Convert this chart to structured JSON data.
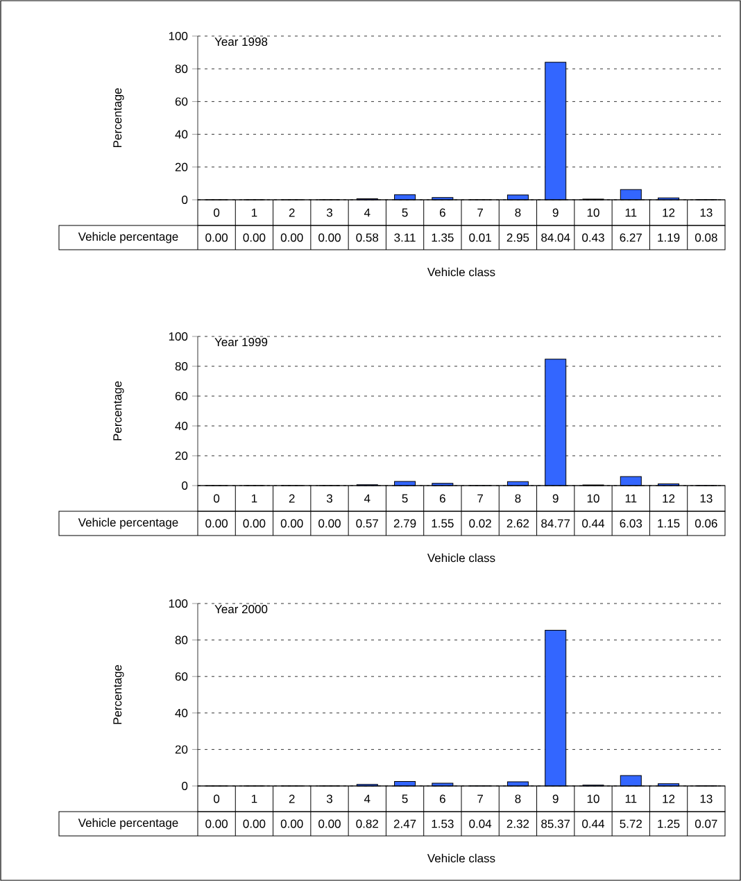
{
  "chart_data": [
    {
      "type": "bar",
      "title": "Year 1998",
      "xlabel": "Vehicle class",
      "ylabel": "Percentage",
      "categories": [
        "0",
        "1",
        "2",
        "3",
        "4",
        "5",
        "6",
        "7",
        "8",
        "9",
        "10",
        "11",
        "12",
        "13"
      ],
      "series": [
        {
          "name": "Vehicle percentage",
          "color": "#3366ff",
          "values": [
            0.0,
            0.0,
            0.0,
            0.0,
            0.58,
            3.11,
            1.35,
            0.01,
            2.95,
            84.04,
            0.43,
            6.27,
            1.19,
            0.08
          ],
          "value_labels": [
            "0.00",
            "0.00",
            "0.00",
            "0.00",
            "0.58",
            "3.11",
            "1.35",
            "0.01",
            "2.95",
            "84.04",
            "0.43",
            "6.27",
            "1.19",
            "0.08"
          ]
        }
      ],
      "ylim": [
        0,
        100
      ],
      "yticks": [
        0,
        20,
        40,
        60,
        80,
        100
      ],
      "grid": "y"
    },
    {
      "type": "bar",
      "title": "Year 1999",
      "xlabel": "Vehicle class",
      "ylabel": "Percentage",
      "categories": [
        "0",
        "1",
        "2",
        "3",
        "4",
        "5",
        "6",
        "7",
        "8",
        "9",
        "10",
        "11",
        "12",
        "13"
      ],
      "series": [
        {
          "name": "Vehicle percentage",
          "color": "#3366ff",
          "values": [
            0.0,
            0.0,
            0.0,
            0.0,
            0.57,
            2.79,
            1.55,
            0.02,
            2.62,
            84.77,
            0.44,
            6.03,
            1.15,
            0.06
          ],
          "value_labels": [
            "0.00",
            "0.00",
            "0.00",
            "0.00",
            "0.57",
            "2.79",
            "1.55",
            "0.02",
            "2.62",
            "84.77",
            "0.44",
            "6.03",
            "1.15",
            "0.06"
          ]
        }
      ],
      "ylim": [
        0,
        100
      ],
      "yticks": [
        0,
        20,
        40,
        60,
        80,
        100
      ],
      "grid": "y"
    },
    {
      "type": "bar",
      "title": "Year 2000",
      "xlabel": "Vehicle class",
      "ylabel": "Percentage",
      "categories": [
        "0",
        "1",
        "2",
        "3",
        "4",
        "5",
        "6",
        "7",
        "8",
        "9",
        "10",
        "11",
        "12",
        "13"
      ],
      "series": [
        {
          "name": "Vehicle percentage",
          "color": "#3366ff",
          "values": [
            0.0,
            0.0,
            0.0,
            0.0,
            0.82,
            2.47,
            1.53,
            0.04,
            2.32,
            85.37,
            0.44,
            5.72,
            1.25,
            0.07
          ],
          "value_labels": [
            "0.00",
            "0.00",
            "0.00",
            "0.00",
            "0.82",
            "2.47",
            "1.53",
            "0.04",
            "2.32",
            "85.37",
            "0.44",
            "5.72",
            "1.25",
            "0.07"
          ]
        }
      ],
      "ylim": [
        0,
        100
      ],
      "yticks": [
        0,
        20,
        40,
        60,
        80,
        100
      ],
      "grid": "y"
    }
  ]
}
